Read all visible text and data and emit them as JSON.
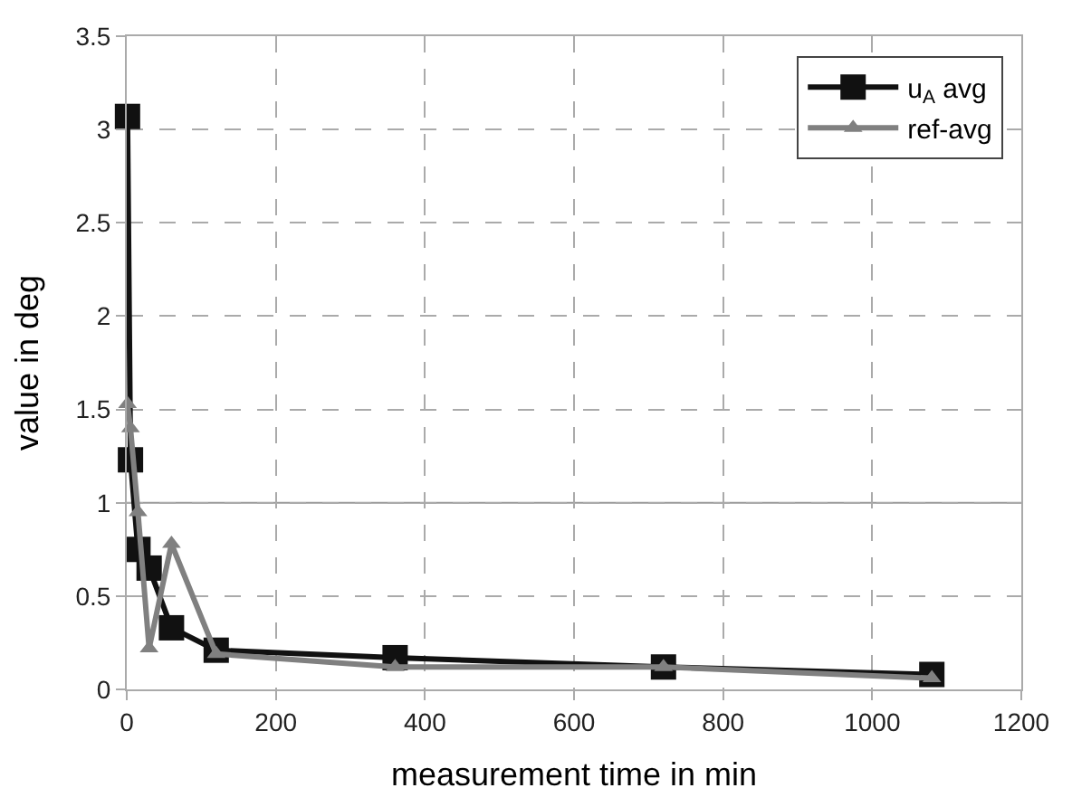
{
  "chart_data": {
    "type": "line",
    "xlabel": "measurement time in min",
    "ylabel": "value in deg",
    "xlim": [
      0,
      1200
    ],
    "xticks": [
      0,
      200,
      400,
      600,
      800,
      1000,
      1200
    ],
    "ylim": [
      0,
      3.5
    ],
    "yticks": [
      0,
      0.5,
      1,
      1.5,
      2,
      2.5,
      3,
      3.5
    ],
    "x": [
      1,
      5,
      15,
      30,
      60,
      120,
      360,
      720,
      1080
    ],
    "series": [
      {
        "name": "u$_{A}$ avg",
        "color": "#111111",
        "marker": "square",
        "values": [
          3.07,
          1.23,
          0.75,
          0.65,
          0.33,
          0.21,
          0.17,
          0.12,
          0.08
        ]
      },
      {
        "name": "ref-avg",
        "color": "#808080",
        "marker": "triangle",
        "values": [
          1.53,
          1.4,
          0.95,
          0.22,
          0.78,
          0.19,
          0.12,
          0.12,
          0.06
        ]
      }
    ],
    "ref_lines": [
      {
        "axis": "y",
        "value": 1,
        "color": "#999999",
        "line_style": "solid"
      }
    ],
    "grid": true,
    "legend": "top right",
    "line_style": "solid"
  }
}
